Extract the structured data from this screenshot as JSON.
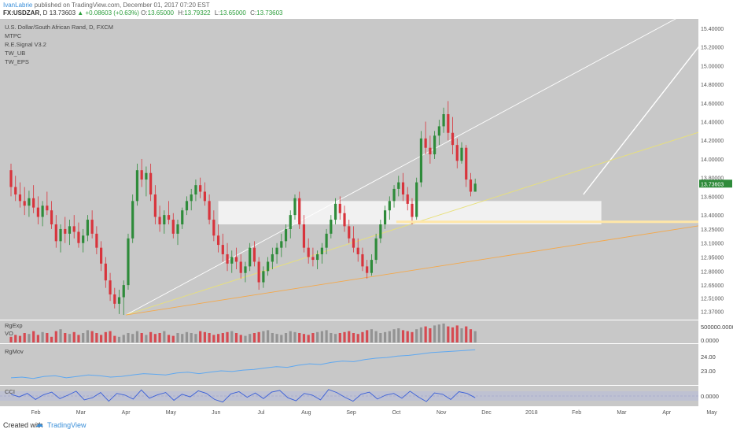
{
  "header": {
    "author": "IvanLabrie",
    "published": "published on TradingView.com, December 01, 2017 07:20 EST",
    "symbol": "FX:USDZAR",
    "interval": ", D",
    "price": "13.73603",
    "change": "▲ +0.08603 (+0.63%)",
    "open_label": "O:",
    "open": "13.65000",
    "high_label": "H:",
    "high": "13.79322",
    "low_label": "L:",
    "low": "13.65000",
    "close_label": "C:",
    "close": "13.73603"
  },
  "legend": {
    "title": "U.S. Dollar/South African Rand, D, FXCM",
    "studies": [
      "MTPC",
      "R.E.Signal V3.2",
      "TW_UB",
      "TW_EPS"
    ]
  },
  "panes": {
    "volume_label": "RgExp",
    "volume_sublabel": "VO",
    "volume_ticks": [
      "500000.0000",
      "0.0000"
    ],
    "rgmov_label": "RgMov",
    "rgmov_ticks": [
      "24.00",
      "23.00"
    ],
    "cci_label": "CCI",
    "cci_tick": "0.0000"
  },
  "footer": {
    "created_with": "Created with",
    "brand": "TradingView"
  },
  "colors": {
    "up": "#2e8b3a",
    "down": "#d8343c",
    "background": "#c8c8c8",
    "pane_background": "#c8c8c8",
    "yellow_line": "#e8e07a",
    "orange_line": "#f4a84a",
    "white_line": "#ffffff",
    "rgmov_line": "#5fa8f0",
    "cci_line": "#3a5fd8",
    "price_tag": "#2e8b3a"
  },
  "chart_data": {
    "type": "candlestick",
    "symbol": "USDZAR",
    "x_axis_labels": [
      "Feb",
      "Mar",
      "Apr",
      "May",
      "Jun",
      "Jul",
      "Aug",
      "Sep",
      "Oct",
      "Nov",
      "Dec",
      "2018",
      "Feb",
      "Mar",
      "Apr",
      "May"
    ],
    "y_axis_ticks": [
      15.4,
      15.2,
      15.0,
      14.8,
      14.6,
      14.4,
      14.2,
      14.0,
      13.8,
      13.6,
      13.4,
      13.25,
      13.1,
      12.95,
      12.8,
      12.65,
      12.51,
      12.37
    ],
    "y_axis_tick_labels": [
      "15.40000",
      "15.20000",
      "15.00000",
      "14.80000",
      "14.60000",
      "14.40000",
      "14.20000",
      "14.00000",
      "13.80000",
      "13.60000",
      "13.40000",
      "13.25000",
      "13.10000",
      "12.95000",
      "12.80000",
      "12.65000",
      "12.51000",
      "12.37000"
    ],
    "ylim": [
      12.28,
      15.5
    ],
    "last_price": 13.73603,
    "horizontal_level": 13.3272,
    "horizontal_level_label": "13.32720",
    "zones": [
      {
        "x_start": 4.6,
        "x_end": 13.1,
        "y_low": 13.3,
        "y_high": 13.55
      }
    ],
    "trendlines": [
      {
        "name": "channel_upper",
        "color": "white",
        "from": [
          2.55,
          12.33
        ],
        "to": [
          15.9,
          15.8
        ]
      },
      {
        "name": "projection",
        "color": "white",
        "from": [
          12.7,
          13.62
        ],
        "to": [
          15.5,
          15.35
        ]
      },
      {
        "name": "support_yellow",
        "color": "yellow",
        "from": [
          2.55,
          12.33
        ],
        "to": [
          16.0,
          14.4
        ]
      },
      {
        "name": "support_orange",
        "color": "orange",
        "from": [
          2.55,
          12.33
        ],
        "to": [
          16.0,
          13.34
        ]
      }
    ],
    "ohlc": [
      [
        0.0,
        13.88,
        13.95,
        13.6,
        13.7
      ],
      [
        0.1,
        13.7,
        13.82,
        13.55,
        13.62
      ],
      [
        0.2,
        13.62,
        13.75,
        13.48,
        13.55
      ],
      [
        0.3,
        13.55,
        13.7,
        13.4,
        13.5
      ],
      [
        0.4,
        13.5,
        13.66,
        13.38,
        13.58
      ],
      [
        0.5,
        13.58,
        13.72,
        13.42,
        13.48
      ],
      [
        0.6,
        13.48,
        13.6,
        13.3,
        13.38
      ],
      [
        0.7,
        13.38,
        13.55,
        13.28,
        13.5
      ],
      [
        0.8,
        13.5,
        13.65,
        13.4,
        13.45
      ],
      [
        0.9,
        13.45,
        13.55,
        13.25,
        13.3
      ],
      [
        1.0,
        13.3,
        13.4,
        13.05,
        13.12
      ],
      [
        1.1,
        13.12,
        13.3,
        13.0,
        13.25
      ],
      [
        1.2,
        13.25,
        13.38,
        13.1,
        13.2
      ],
      [
        1.3,
        13.2,
        13.35,
        13.08,
        13.28
      ],
      [
        1.4,
        13.28,
        13.4,
        13.15,
        13.22
      ],
      [
        1.5,
        13.22,
        13.32,
        13.05,
        13.1
      ],
      [
        1.6,
        13.1,
        13.25,
        13.0,
        13.18
      ],
      [
        1.7,
        13.18,
        13.4,
        13.12,
        13.35
      ],
      [
        1.8,
        13.35,
        13.45,
        13.15,
        13.2
      ],
      [
        1.9,
        13.2,
        13.28,
        12.98,
        13.05
      ],
      [
        2.0,
        13.05,
        13.12,
        12.8,
        12.88
      ],
      [
        2.1,
        12.88,
        12.95,
        12.62,
        12.7
      ],
      [
        2.2,
        12.7,
        12.78,
        12.48,
        12.55
      ],
      [
        2.3,
        12.55,
        12.62,
        12.4,
        12.45
      ],
      [
        2.4,
        12.45,
        12.6,
        12.34,
        12.52
      ],
      [
        2.5,
        12.52,
        12.7,
        12.33,
        12.65
      ],
      [
        2.6,
        12.65,
        13.2,
        12.6,
        13.15
      ],
      [
        2.7,
        13.15,
        13.62,
        13.1,
        13.55
      ],
      [
        2.8,
        13.55,
        13.95,
        13.5,
        13.88
      ],
      [
        2.9,
        13.88,
        14.0,
        13.7,
        13.78
      ],
      [
        3.0,
        13.78,
        13.92,
        13.6,
        13.85
      ],
      [
        3.1,
        13.85,
        13.95,
        13.55,
        13.62
      ],
      [
        3.2,
        13.62,
        13.72,
        13.3,
        13.38
      ],
      [
        3.3,
        13.38,
        13.5,
        13.22,
        13.3
      ],
      [
        3.4,
        13.3,
        13.45,
        13.2,
        13.4
      ],
      [
        3.5,
        13.4,
        13.55,
        13.3,
        13.35
      ],
      [
        3.6,
        13.35,
        13.42,
        13.15,
        13.2
      ],
      [
        3.7,
        13.2,
        13.35,
        13.08,
        13.3
      ],
      [
        3.8,
        13.3,
        13.48,
        13.25,
        13.45
      ],
      [
        3.9,
        13.45,
        13.6,
        13.4,
        13.55
      ],
      [
        4.0,
        13.55,
        13.68,
        13.45,
        13.62
      ],
      [
        4.1,
        13.62,
        13.78,
        13.55,
        13.72
      ],
      [
        4.2,
        13.72,
        13.8,
        13.58,
        13.65
      ],
      [
        4.3,
        13.65,
        13.75,
        13.5,
        13.55
      ],
      [
        4.4,
        13.55,
        13.62,
        13.3,
        13.35
      ],
      [
        4.5,
        13.35,
        13.45,
        13.12,
        13.18
      ],
      [
        4.6,
        13.18,
        13.3,
        13.0,
        13.08
      ],
      [
        4.7,
        13.08,
        13.2,
        12.9,
        12.98
      ],
      [
        4.8,
        12.98,
        13.1,
        12.8,
        12.88
      ],
      [
        4.9,
        12.88,
        13.02,
        12.78,
        12.95
      ],
      [
        5.0,
        12.95,
        13.05,
        12.82,
        12.9
      ],
      [
        5.1,
        12.9,
        12.98,
        12.72,
        12.78
      ],
      [
        5.2,
        12.78,
        12.9,
        12.68,
        12.85
      ],
      [
        5.3,
        12.85,
        13.1,
        12.8,
        13.05
      ],
      [
        5.4,
        13.05,
        13.12,
        12.85,
        12.9
      ],
      [
        5.5,
        12.9,
        12.95,
        12.6,
        12.68
      ],
      [
        5.6,
        12.68,
        12.85,
        12.62,
        12.8
      ],
      [
        5.7,
        12.8,
        12.95,
        12.75,
        12.9
      ],
      [
        5.8,
        12.9,
        13.05,
        12.82,
        12.98
      ],
      [
        5.9,
        12.98,
        13.1,
        12.88,
        13.05
      ],
      [
        6.0,
        13.05,
        13.2,
        12.95,
        13.12
      ],
      [
        6.1,
        13.12,
        13.3,
        13.05,
        13.25
      ],
      [
        6.2,
        13.25,
        13.45,
        13.15,
        13.4
      ],
      [
        6.3,
        13.4,
        13.62,
        13.35,
        13.58
      ],
      [
        6.4,
        13.58,
        13.65,
        13.25,
        13.3
      ],
      [
        6.5,
        13.3,
        13.4,
        13.0,
        13.05
      ],
      [
        6.6,
        13.05,
        13.15,
        12.88,
        12.95
      ],
      [
        6.7,
        12.95,
        13.05,
        12.85,
        12.92
      ],
      [
        6.8,
        12.92,
        13.02,
        12.82,
        12.98
      ],
      [
        6.9,
        12.98,
        13.1,
        12.88,
        13.05
      ],
      [
        7.0,
        13.05,
        13.25,
        12.98,
        13.2
      ],
      [
        7.1,
        13.2,
        13.4,
        13.15,
        13.35
      ],
      [
        7.2,
        13.35,
        13.58,
        13.3,
        13.52
      ],
      [
        7.3,
        13.52,
        13.6,
        13.35,
        13.42
      ],
      [
        7.4,
        13.42,
        13.5,
        13.22,
        13.28
      ],
      [
        7.5,
        13.28,
        13.35,
        13.1,
        13.15
      ],
      [
        7.6,
        13.15,
        13.28,
        13.0,
        13.05
      ],
      [
        7.7,
        13.05,
        13.15,
        12.9,
        12.98
      ],
      [
        7.8,
        12.98,
        13.05,
        12.8,
        12.85
      ],
      [
        7.9,
        12.85,
        12.92,
        12.72,
        12.78
      ],
      [
        8.0,
        12.78,
        12.98,
        12.75,
        12.92
      ],
      [
        8.1,
        12.92,
        13.2,
        12.88,
        13.15
      ],
      [
        8.2,
        13.15,
        13.35,
        13.1,
        13.3
      ],
      [
        8.3,
        13.3,
        13.5,
        13.25,
        13.45
      ],
      [
        8.4,
        13.45,
        13.6,
        13.35,
        13.55
      ],
      [
        8.5,
        13.55,
        13.72,
        13.48,
        13.68
      ],
      [
        8.6,
        13.68,
        13.82,
        13.6,
        13.75
      ],
      [
        8.7,
        13.75,
        13.85,
        13.55,
        13.62
      ],
      [
        8.8,
        13.62,
        13.7,
        13.45,
        13.52
      ],
      [
        8.9,
        13.52,
        13.58,
        13.3,
        13.38
      ],
      [
        9.0,
        13.38,
        13.8,
        13.35,
        13.75
      ],
      [
        9.1,
        13.75,
        14.3,
        13.7,
        14.22
      ],
      [
        9.2,
        14.22,
        14.4,
        14.05,
        14.12
      ],
      [
        9.3,
        14.12,
        14.25,
        13.95,
        14.05
      ],
      [
        9.4,
        14.05,
        14.3,
        14.0,
        14.25
      ],
      [
        9.5,
        14.25,
        14.42,
        14.15,
        14.35
      ],
      [
        9.6,
        14.35,
        14.55,
        14.28,
        14.48
      ],
      [
        9.7,
        14.48,
        14.62,
        14.2,
        14.28
      ],
      [
        9.8,
        14.28,
        14.45,
        14.05,
        14.15
      ],
      [
        9.9,
        14.15,
        14.22,
        13.9,
        13.98
      ],
      [
        10.0,
        13.98,
        14.18,
        13.95,
        14.12
      ],
      [
        10.1,
        14.12,
        14.15,
        13.7,
        13.78
      ],
      [
        10.2,
        13.78,
        13.85,
        13.6,
        13.65
      ],
      [
        10.3,
        13.65,
        13.79,
        13.65,
        13.736
      ]
    ],
    "volume": [
      0.3,
      0.4,
      0.35,
      0.5,
      0.45,
      0.6,
      0.4,
      0.55,
      0.5,
      0.3,
      0.6,
      0.7,
      0.5,
      0.45,
      0.55,
      0.4,
      0.5,
      0.65,
      0.6,
      0.5,
      0.4,
      0.55,
      0.6,
      0.35,
      0.3,
      0.4,
      0.5,
      0.45,
      0.6,
      0.5,
      0.4,
      0.55,
      0.45,
      0.5,
      0.6,
      0.4,
      0.35,
      0.5,
      0.45,
      0.55,
      0.5,
      0.45,
      0.6,
      0.55,
      0.5,
      0.4,
      0.45,
      0.5,
      0.55,
      0.6,
      0.5,
      0.4,
      0.35,
      0.45,
      0.5,
      0.55,
      0.6,
      0.65,
      0.5,
      0.45,
      0.4,
      0.5,
      0.6,
      0.55,
      0.5,
      0.45,
      0.4,
      0.5,
      0.55,
      0.6,
      0.65,
      0.5,
      0.45,
      0.5,
      0.55,
      0.6,
      0.5,
      0.45,
      0.55,
      0.65,
      0.7,
      0.6,
      0.5,
      0.55,
      0.6,
      0.7,
      0.75,
      0.65,
      0.6,
      0.55,
      0.7,
      0.8,
      0.85,
      0.75,
      0.9,
      0.95,
      1.0,
      0.85,
      0.8,
      0.9,
      0.75,
      0.85,
      0.7,
      0.6
    ],
    "rgmov": [
      22.6,
      22.65,
      22.55,
      22.7,
      22.75,
      22.6,
      22.7,
      22.8,
      22.75,
      22.65,
      22.7,
      22.8,
      22.9,
      22.85,
      22.8,
      22.95,
      23.0,
      22.9,
      23.0,
      23.1,
      23.05,
      23.15,
      23.2,
      23.3,
      23.4,
      23.35,
      23.5,
      23.6,
      23.55,
      23.7,
      23.8,
      23.75,
      23.9,
      24.0,
      24.05,
      24.15,
      24.2,
      24.3,
      24.4,
      24.45,
      24.5,
      24.55,
      24.6
    ],
    "cci": [
      40,
      -20,
      60,
      -80,
      30,
      90,
      -60,
      20,
      110,
      -90,
      -40,
      80,
      -120,
      60,
      20,
      -70,
      140,
      -50,
      30,
      80,
      -100,
      40,
      -20,
      120,
      60,
      -80,
      -140,
      50,
      100,
      -30,
      70,
      -60,
      90,
      130,
      -40,
      -110,
      60,
      20,
      -90,
      150,
      80,
      -30,
      -120,
      40,
      90,
      -70,
      20,
      60,
      -50,
      110,
      -20,
      -130,
      70,
      40,
      -80,
      100,
      60,
      -40
    ]
  }
}
